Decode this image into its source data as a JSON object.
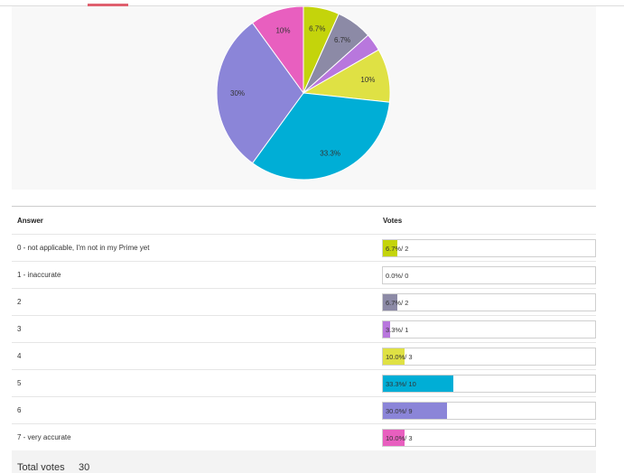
{
  "chart_data": {
    "type": "pie",
    "slices": [
      {
        "label": "0 - not applicable, I'm not in my Prime yet",
        "value": 6.7,
        "votes": 2,
        "color": "#c4d40b",
        "display": "6.7%"
      },
      {
        "label": "1 - inaccurate",
        "value": 0.0,
        "votes": 0,
        "color": "#f2b640",
        "display": ""
      },
      {
        "label": "2",
        "value": 6.7,
        "votes": 2,
        "color": "#8c8aa6",
        "display": "6.7%"
      },
      {
        "label": "3",
        "value": 3.3,
        "votes": 1,
        "color": "#b877dd",
        "display": ""
      },
      {
        "label": "4",
        "value": 10.0,
        "votes": 3,
        "color": "#dfe144",
        "display": "10%"
      },
      {
        "label": "5",
        "value": 33.3,
        "votes": 10,
        "color": "#00aed6",
        "display": "33.3%"
      },
      {
        "label": "6",
        "value": 30.0,
        "votes": 9,
        "color": "#8b85d8",
        "display": "30%"
      },
      {
        "label": "7 - very accurate",
        "value": 10.0,
        "votes": 3,
        "color": "#e85fbf",
        "display": "10%"
      }
    ]
  },
  "table": {
    "answer_header": "Answer",
    "votes_header": "Votes",
    "rows": [
      {
        "answer": "0 - not applicable, I'm not in my Prime yet",
        "vote_text": "6.7%/ 2",
        "percent": 6.7,
        "color": "#c4d40b"
      },
      {
        "answer": "1 - inaccurate",
        "vote_text": "0.0%/ 0",
        "percent": 0.0,
        "color": "#f2b640"
      },
      {
        "answer": "2",
        "vote_text": "6.7%/ 2",
        "percent": 6.7,
        "color": "#8c8aa6"
      },
      {
        "answer": "3",
        "vote_text": "3.3%/ 1",
        "percent": 3.3,
        "color": "#b877dd"
      },
      {
        "answer": "4",
        "vote_text": "10.0%/ 3",
        "percent": 10.0,
        "color": "#dfe144"
      },
      {
        "answer": "5",
        "vote_text": "33.3%/ 10",
        "percent": 33.3,
        "color": "#00aed6"
      },
      {
        "answer": "6",
        "vote_text": "30.0%/ 9",
        "percent": 30.0,
        "color": "#8b85d8"
      },
      {
        "answer": "7 - very accurate",
        "vote_text": "10.0%/ 3",
        "percent": 10.0,
        "color": "#e85fbf"
      }
    ]
  },
  "total": {
    "label": "Total votes",
    "value": "30"
  }
}
